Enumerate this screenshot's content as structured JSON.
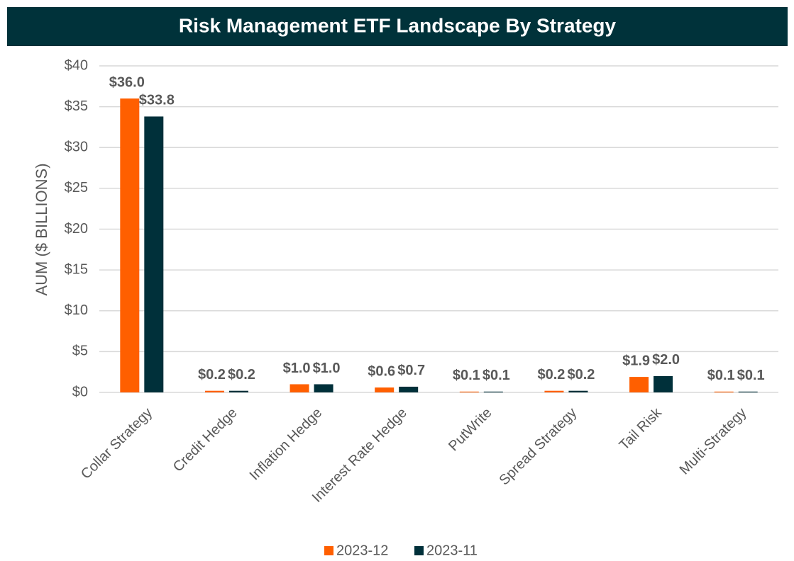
{
  "chart_data": {
    "type": "bar",
    "title": "Risk Management ETF Landscape By Strategy",
    "y_label": "AUM ($ BILLIONS)",
    "categories": [
      "Collar Strategy",
      "Credit Hedge",
      "Inflation Hedge",
      "Interest Rate Hedge",
      "PutWrite",
      "Spread Strategy",
      "Tail Risk",
      "Multi-Strategy"
    ],
    "series": [
      {
        "name": "2023-12",
        "color": "#ff5f00",
        "values": [
          36.0,
          0.2,
          1.0,
          0.6,
          0.1,
          0.2,
          1.9,
          0.1
        ],
        "value_labels": [
          "$36.0",
          "$0.2",
          "$1.0",
          "$0.6",
          "$0.1",
          "$0.2",
          "$1.9",
          "$0.1"
        ]
      },
      {
        "name": "2023-11",
        "color": "#00303a",
        "values": [
          33.8,
          0.2,
          1.0,
          0.7,
          0.1,
          0.2,
          2.0,
          0.1
        ],
        "value_labels": [
          "$33.8",
          "$0.2",
          "$1.0",
          "$0.7",
          "$0.1",
          "$0.2",
          "$2.0",
          "$0.1"
        ]
      }
    ],
    "ylim": [
      0,
      40
    ],
    "yticks": [
      {
        "value": 0,
        "label": "$0"
      },
      {
        "value": 5,
        "label": "$5"
      },
      {
        "value": 10,
        "label": "$10"
      },
      {
        "value": 15,
        "label": "$15"
      },
      {
        "value": 20,
        "label": "$20"
      },
      {
        "value": 25,
        "label": "$25"
      },
      {
        "value": 30,
        "label": "$30"
      },
      {
        "value": 35,
        "label": "$35"
      },
      {
        "value": 40,
        "label": "$40"
      }
    ],
    "grid": true,
    "legend": "bottom"
  }
}
